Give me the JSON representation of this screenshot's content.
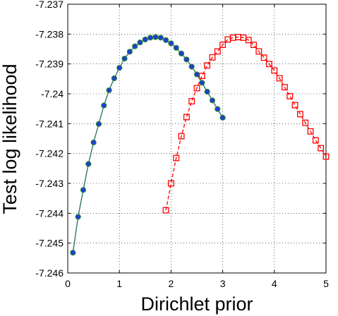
{
  "chart_data": {
    "type": "line",
    "title": "",
    "xlabel": "Dirichlet prior",
    "ylabel": "Test log likelihood",
    "xlim": [
      0,
      5
    ],
    "ylim": [
      -7.246,
      -7.237
    ],
    "grid": true,
    "legend": "none",
    "x_ticks": [
      {
        "value": 0,
        "label": "0"
      },
      {
        "value": 1,
        "label": "1"
      },
      {
        "value": 2,
        "label": "2"
      },
      {
        "value": 3,
        "label": "3"
      },
      {
        "value": 4,
        "label": "4"
      },
      {
        "value": 5,
        "label": "5"
      }
    ],
    "y_ticks": [
      {
        "value": -7.237,
        "label": "-7.237"
      },
      {
        "value": -7.238,
        "label": "-7.238"
      },
      {
        "value": -7.239,
        "label": "-7.239"
      },
      {
        "value": -7.24,
        "label": "-7.24"
      },
      {
        "value": -7.241,
        "label": "-7.241"
      },
      {
        "value": -7.242,
        "label": "-7.242"
      },
      {
        "value": -7.243,
        "label": "-7.243"
      },
      {
        "value": -7.244,
        "label": "-7.244"
      },
      {
        "value": -7.245,
        "label": "-7.245"
      },
      {
        "value": -7.246,
        "label": "-7.246"
      }
    ],
    "series": [
      {
        "line_color": "#1f3fcf",
        "marker_face": "#1f3fcf",
        "marker_edge": "#2e8b2e",
        "marker": "circle",
        "line_style": "solid",
        "overlay_line_color": "#2e8b2e",
        "x": [
          0.1,
          0.2,
          0.3,
          0.4,
          0.5,
          0.6,
          0.7,
          0.8,
          0.9,
          1.0,
          1.1,
          1.2,
          1.3,
          1.4,
          1.5,
          1.6,
          1.7,
          1.8,
          1.9,
          2.0,
          2.1,
          2.2,
          2.3,
          2.4,
          2.5,
          2.6,
          2.7,
          2.8,
          2.9,
          3.0
        ],
        "y": [
          -7.24532,
          -7.24412,
          -7.24322,
          -7.24235,
          -7.24163,
          -7.24101,
          -7.24039,
          -7.23988,
          -7.23948,
          -7.23913,
          -7.23882,
          -7.23859,
          -7.23841,
          -7.23828,
          -7.23818,
          -7.23812,
          -7.2381,
          -7.23812,
          -7.2382,
          -7.23831,
          -7.23846,
          -7.23865,
          -7.23885,
          -7.23909,
          -7.23935,
          -7.23963,
          -7.23993,
          -7.24022,
          -7.24051,
          -7.2408
        ]
      },
      {
        "line_color": "#ff0000",
        "marker_face": "none",
        "marker_edge": "#ff0000",
        "marker": "square",
        "line_style": "dashed",
        "x": [
          1.9,
          2.0,
          2.1,
          2.2,
          2.3,
          2.4,
          2.5,
          2.6,
          2.7,
          2.8,
          2.9,
          3.0,
          3.1,
          3.2,
          3.3,
          3.4,
          3.5,
          3.6,
          3.7,
          3.8,
          3.9,
          4.0,
          4.1,
          4.2,
          4.3,
          4.4,
          4.5,
          4.6,
          4.7,
          4.8,
          4.9,
          5.0
        ],
        "y": [
          -7.2439,
          -7.243,
          -7.24215,
          -7.24142,
          -7.24078,
          -7.24025,
          -7.23981,
          -7.2394,
          -7.23905,
          -7.23878,
          -7.23858,
          -7.23836,
          -7.23818,
          -7.23812,
          -7.2381,
          -7.23812,
          -7.2382,
          -7.23836,
          -7.23858,
          -7.23879,
          -7.239,
          -7.23922,
          -7.23948,
          -7.23978,
          -7.24008,
          -7.24038,
          -7.24068,
          -7.24097,
          -7.24126,
          -7.24156,
          -7.24182,
          -7.2421
        ]
      }
    ]
  }
}
